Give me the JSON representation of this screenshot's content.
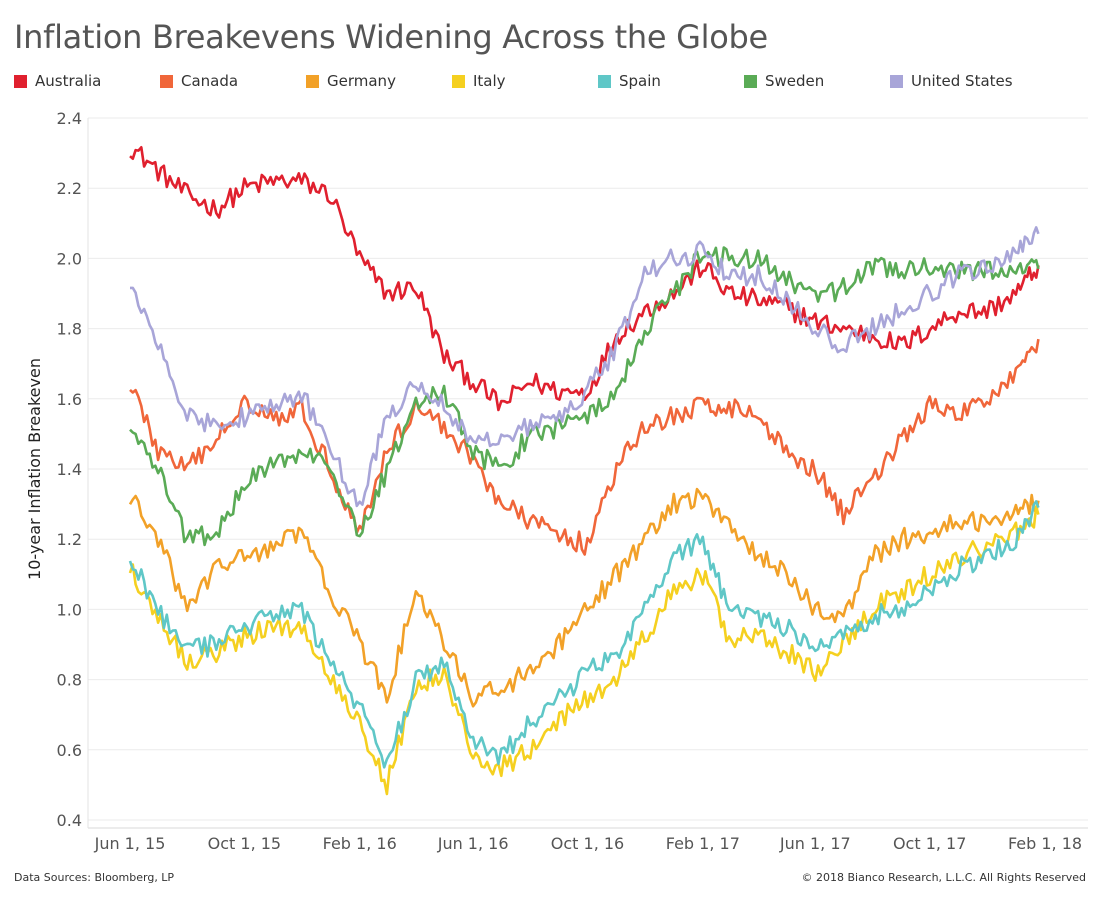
{
  "footer": {
    "source": "Data Sources: Bloomberg, LP",
    "copyright": "© 2018 Bianco Research, L.L.C. All Rights Reserved"
  },
  "chart_data": {
    "type": "line",
    "title": "Inflation Breakevens Widening Across the Globe",
    "ylabel": "10-year Inflation Breakeven",
    "xlabel": "",
    "ylim": [
      0.4,
      2.4
    ],
    "yticks": [
      "0.4",
      "0.6",
      "0.8",
      "1.0",
      "1.2",
      "1.4",
      "1.6",
      "1.8",
      "2.0",
      "2.2",
      "2.4"
    ],
    "xticks": [
      "Jun 1, 15",
      "Oct 1, 15",
      "Feb 1, 16",
      "Jun 1, 16",
      "Oct 1, 16",
      "Feb 1, 17",
      "Jun 1, 17",
      "Oct 1, 17",
      "Feb 1, 18"
    ],
    "grid": true,
    "legend_position": "top",
    "x": [
      "2015-06-01",
      "2015-07-01",
      "2015-08-01",
      "2015-09-01",
      "2015-10-01",
      "2015-11-01",
      "2015-12-01",
      "2016-01-01",
      "2016-02-01",
      "2016-03-01",
      "2016-04-01",
      "2016-05-01",
      "2016-06-01",
      "2016-07-01",
      "2016-08-01",
      "2016-09-01",
      "2016-10-01",
      "2016-11-01",
      "2016-12-01",
      "2017-01-01",
      "2017-02-01",
      "2017-03-01",
      "2017-04-01",
      "2017-05-01",
      "2017-06-01",
      "2017-07-01",
      "2017-08-01",
      "2017-09-01",
      "2017-10-01",
      "2017-11-01",
      "2017-12-01",
      "2018-01-01",
      "2018-01-25"
    ],
    "series": [
      {
        "name": "Australia",
        "color": "#e0202e",
        "values": [
          2.32,
          2.25,
          2.18,
          2.14,
          2.2,
          2.22,
          2.22,
          2.18,
          2.0,
          1.9,
          1.92,
          1.72,
          1.65,
          1.58,
          1.65,
          1.62,
          1.62,
          1.78,
          1.85,
          1.9,
          1.98,
          1.9,
          1.88,
          1.86,
          1.82,
          1.8,
          1.78,
          1.75,
          1.8,
          1.85,
          1.85,
          1.9,
          1.98
        ]
      },
      {
        "name": "Canada",
        "color": "#f0663a",
        "values": [
          1.65,
          1.45,
          1.4,
          1.48,
          1.6,
          1.55,
          1.57,
          1.4,
          1.22,
          1.45,
          1.58,
          1.52,
          1.43,
          1.3,
          1.25,
          1.22,
          1.18,
          1.4,
          1.52,
          1.55,
          1.58,
          1.58,
          1.55,
          1.45,
          1.4,
          1.27,
          1.38,
          1.48,
          1.58,
          1.55,
          1.6,
          1.68,
          1.77
        ]
      },
      {
        "name": "Germany",
        "color": "#f2a128",
        "values": [
          1.32,
          1.2,
          1.0,
          1.12,
          1.15,
          1.18,
          1.22,
          1.05,
          0.9,
          0.75,
          1.05,
          0.9,
          0.75,
          0.78,
          0.82,
          0.9,
          1.0,
          1.1,
          1.2,
          1.3,
          1.32,
          1.25,
          1.15,
          1.1,
          1.0,
          0.98,
          1.15,
          1.2,
          1.22,
          1.25,
          1.25,
          1.28,
          1.31
        ]
      },
      {
        "name": "Italy",
        "color": "#f5d020",
        "values": [
          1.12,
          0.98,
          0.85,
          0.88,
          0.92,
          0.95,
          0.95,
          0.8,
          0.68,
          0.5,
          0.78,
          0.82,
          0.58,
          0.55,
          0.6,
          0.68,
          0.75,
          0.8,
          0.92,
          1.05,
          1.1,
          0.92,
          0.92,
          0.88,
          0.82,
          0.9,
          1.0,
          1.05,
          1.1,
          1.15,
          1.18,
          1.22,
          1.27
        ]
      },
      {
        "name": "Spain",
        "color": "#5fc7c7",
        "values": [
          1.15,
          1.0,
          0.88,
          0.9,
          0.95,
          0.98,
          1.0,
          0.85,
          0.72,
          0.55,
          0.8,
          0.85,
          0.62,
          0.58,
          0.68,
          0.75,
          0.82,
          0.88,
          1.0,
          1.15,
          1.2,
          1.0,
          0.98,
          0.95,
          0.88,
          0.92,
          0.98,
          1.0,
          1.05,
          1.12,
          1.15,
          1.2,
          1.29
        ]
      },
      {
        "name": "Sweden",
        "color": "#5aab56",
        "values": [
          1.52,
          1.4,
          1.2,
          1.22,
          1.35,
          1.42,
          1.45,
          1.4,
          1.2,
          1.4,
          1.6,
          1.62,
          1.45,
          1.4,
          1.5,
          1.52,
          1.55,
          1.62,
          1.8,
          1.9,
          2.02,
          2.0,
          2.0,
          1.95,
          1.88,
          1.92,
          1.98,
          1.96,
          1.98,
          1.97,
          1.96,
          1.97,
          1.97
        ]
      },
      {
        "name": "United States",
        "color": "#a8a5d8",
        "values": [
          1.92,
          1.75,
          1.55,
          1.52,
          1.55,
          1.58,
          1.62,
          1.45,
          1.3,
          1.55,
          1.65,
          1.58,
          1.48,
          1.5,
          1.52,
          1.55,
          1.62,
          1.75,
          1.95,
          2.0,
          2.02,
          1.95,
          1.95,
          1.88,
          1.8,
          1.75,
          1.8,
          1.85,
          1.9,
          1.95,
          1.98,
          2.02,
          2.07
        ]
      }
    ]
  }
}
